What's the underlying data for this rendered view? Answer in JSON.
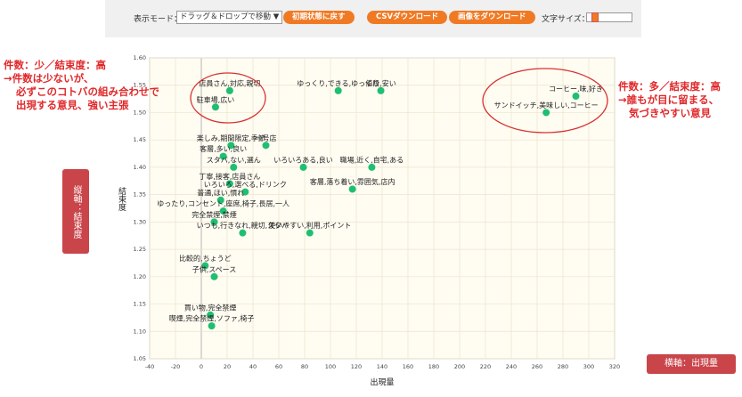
{
  "toolbar": {
    "mode_label": "表示モード：",
    "mode_value": "ドラッグ＆ドロップで移動 ▼",
    "buttons": [
      "初期状態に戻す",
      "CSVダウンロード",
      "画像をダウンロード"
    ],
    "font_size_label": "文字サイズ："
  },
  "callouts": {
    "left": [
      "件数：少／結束度：高",
      "→件数は少ないが、",
      "必ずこのコトバの組み合わせで",
      "出現する意見、強い主張"
    ],
    "right": [
      "件数：多／結束度：高",
      "→誰もが目に留まる、",
      "気づきやすい意見"
    ],
    "y_note": "縦軸：結束度",
    "x_note": "横軸：出現量"
  },
  "chart_data": {
    "type": "scatter",
    "x_label": "出現量",
    "y_label": "結束度",
    "color": "#1fbf72",
    "grid": true,
    "labels": [
      "店員さん,対応,親切",
      "駐車場,広い",
      "ゆっくり,できる,ゆっくり",
      "値段,安い",
      "コーヒー,味,好き",
      "サンドイッチ,美味しい,コーヒー",
      "楽しみ,期間限定,季節",
      "一号店",
      "客層,多い,良い",
      "いろいろある,良い",
      "職場,近く,自宅,ある",
      "スタバ,ない,選ん",
      "丁寧,接客,店員さん",
      "客層,落ち着い,雰囲気,店内",
      "いろいろ,選べる,ドリンク",
      "普通,ほい,慣れ",
      "ゆったり,コンセント,座席,椅子,長居,一人",
      "完全禁煙,禁煙",
      "いつも,行きなれ,親切,スタバ",
      "使いやすい,利用,ポイント",
      "比較的,ちょうど",
      "子供,スペース",
      "買い物,完全禁煙",
      "喫煙,完全禁煙,ソファ,椅子"
    ],
    "x": [
      22,
      11,
      106,
      139,
      290,
      267,
      23,
      50,
      17,
      79,
      132,
      25,
      22,
      117,
      34,
      15,
      17,
      10,
      32,
      84,
      3,
      10,
      7,
      8
    ],
    "values": [
      1.54,
      1.51,
      1.54,
      1.54,
      1.53,
      1.5,
      1.44,
      1.44,
      1.42,
      1.4,
      1.4,
      1.4,
      1.37,
      1.36,
      1.355,
      1.34,
      1.32,
      1.3,
      1.28,
      1.28,
      1.22,
      1.2,
      1.13,
      1.11
    ],
    "xlim": [
      -40,
      320
    ],
    "xticks": [
      -40,
      -20,
      0,
      20,
      40,
      60,
      80,
      100,
      120,
      140,
      160,
      180,
      200,
      220,
      240,
      260,
      280,
      300,
      320
    ],
    "ylim": [
      1.05,
      1.6
    ],
    "yticks": [
      1.05,
      {
        "value": 1.1,
        "label": "1.10"
      },
      1.15,
      {
        "value": 1.2,
        "label": "1.20"
      },
      1.25,
      {
        "value": 1.3,
        "label": "1.30"
      },
      1.35,
      {
        "value": 1.4,
        "label": "1.40"
      },
      1.45,
      {
        "value": 1.5,
        "label": "1.50"
      },
      1.55,
      {
        "value": 1.6,
        "label": "1.60"
      }
    ]
  }
}
